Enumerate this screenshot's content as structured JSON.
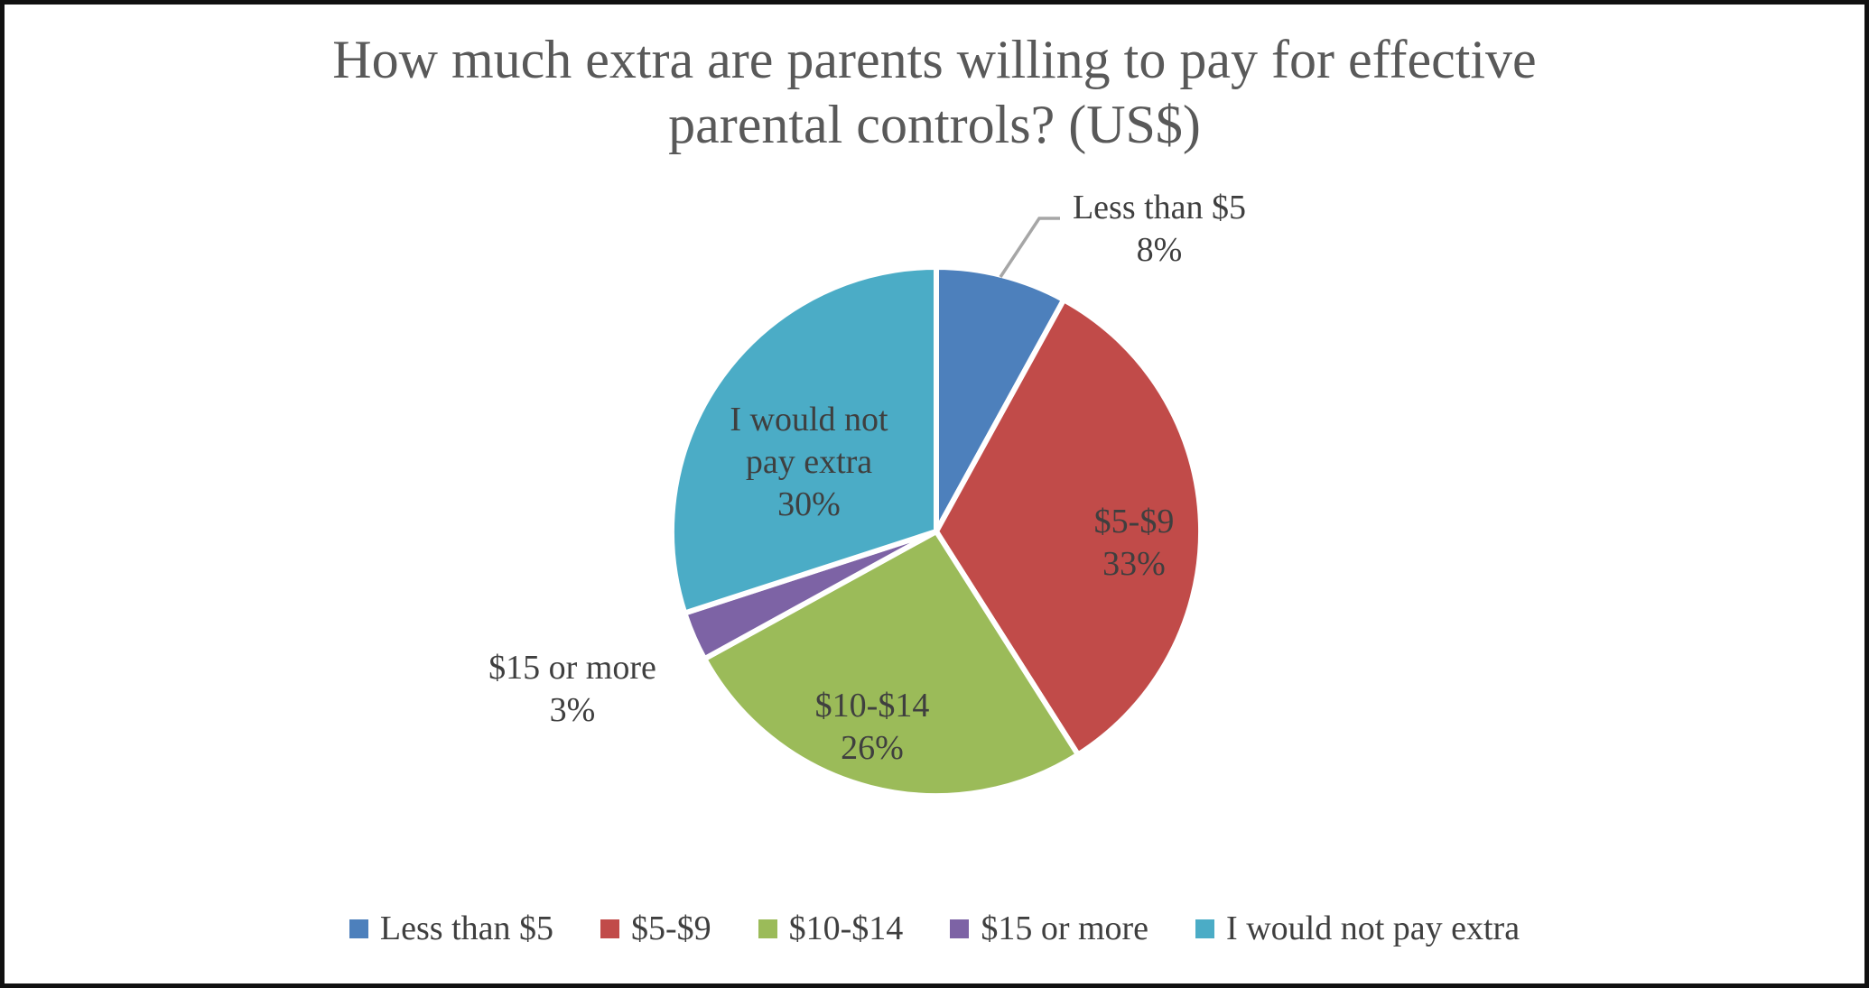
{
  "title": {
    "line1": "How much extra are parents willing to pay for effective",
    "line2": "parental controls? (US$)"
  },
  "chart_data": {
    "type": "pie",
    "title": "How much extra are parents willing to pay for effective parental controls? (US$)",
    "categories": [
      "Less than $5",
      "$5-$9",
      "$10-$14",
      "$15 or more",
      "I would not pay extra"
    ],
    "values": [
      8,
      33,
      26,
      3,
      30
    ],
    "unit": "percent",
    "start_angle_deg": 0,
    "direction": "clockwise",
    "legend_position": "bottom",
    "slices": [
      {
        "label": "Less than $5",
        "value_pct": 8,
        "color": "#4D80BC",
        "label_position": "outside",
        "label_lines": [
          "Less than $5",
          "8%"
        ],
        "leader_line": true
      },
      {
        "label": "$5-$9",
        "value_pct": 33,
        "color": "#C14B49",
        "label_position": "inside",
        "label_lines": [
          "$5-$9",
          "33%"
        ],
        "leader_line": false
      },
      {
        "label": "$10-$14",
        "value_pct": 26,
        "color": "#9BBB59",
        "label_position": "inside",
        "label_lines": [
          "$10-$14",
          "26%"
        ],
        "leader_line": false
      },
      {
        "label": "$15 or more",
        "value_pct": 3,
        "color": "#7D63A5",
        "label_position": "outside",
        "label_lines": [
          "$15 or more",
          "3%"
        ],
        "leader_line": false
      },
      {
        "label": "I would not pay extra",
        "value_pct": 30,
        "color": "#4BACC6",
        "label_position": "inside",
        "label_lines": [
          "I would not",
          "pay extra",
          "30%"
        ],
        "leader_line": false
      }
    ]
  },
  "colors": {
    "title_text": "#595959",
    "label_text": "#3F3F3F",
    "leader_line": "#A6A6A6",
    "slice_gap": "#FFFFFF",
    "frame_border": "#111111",
    "background": "#FFFFFF"
  }
}
